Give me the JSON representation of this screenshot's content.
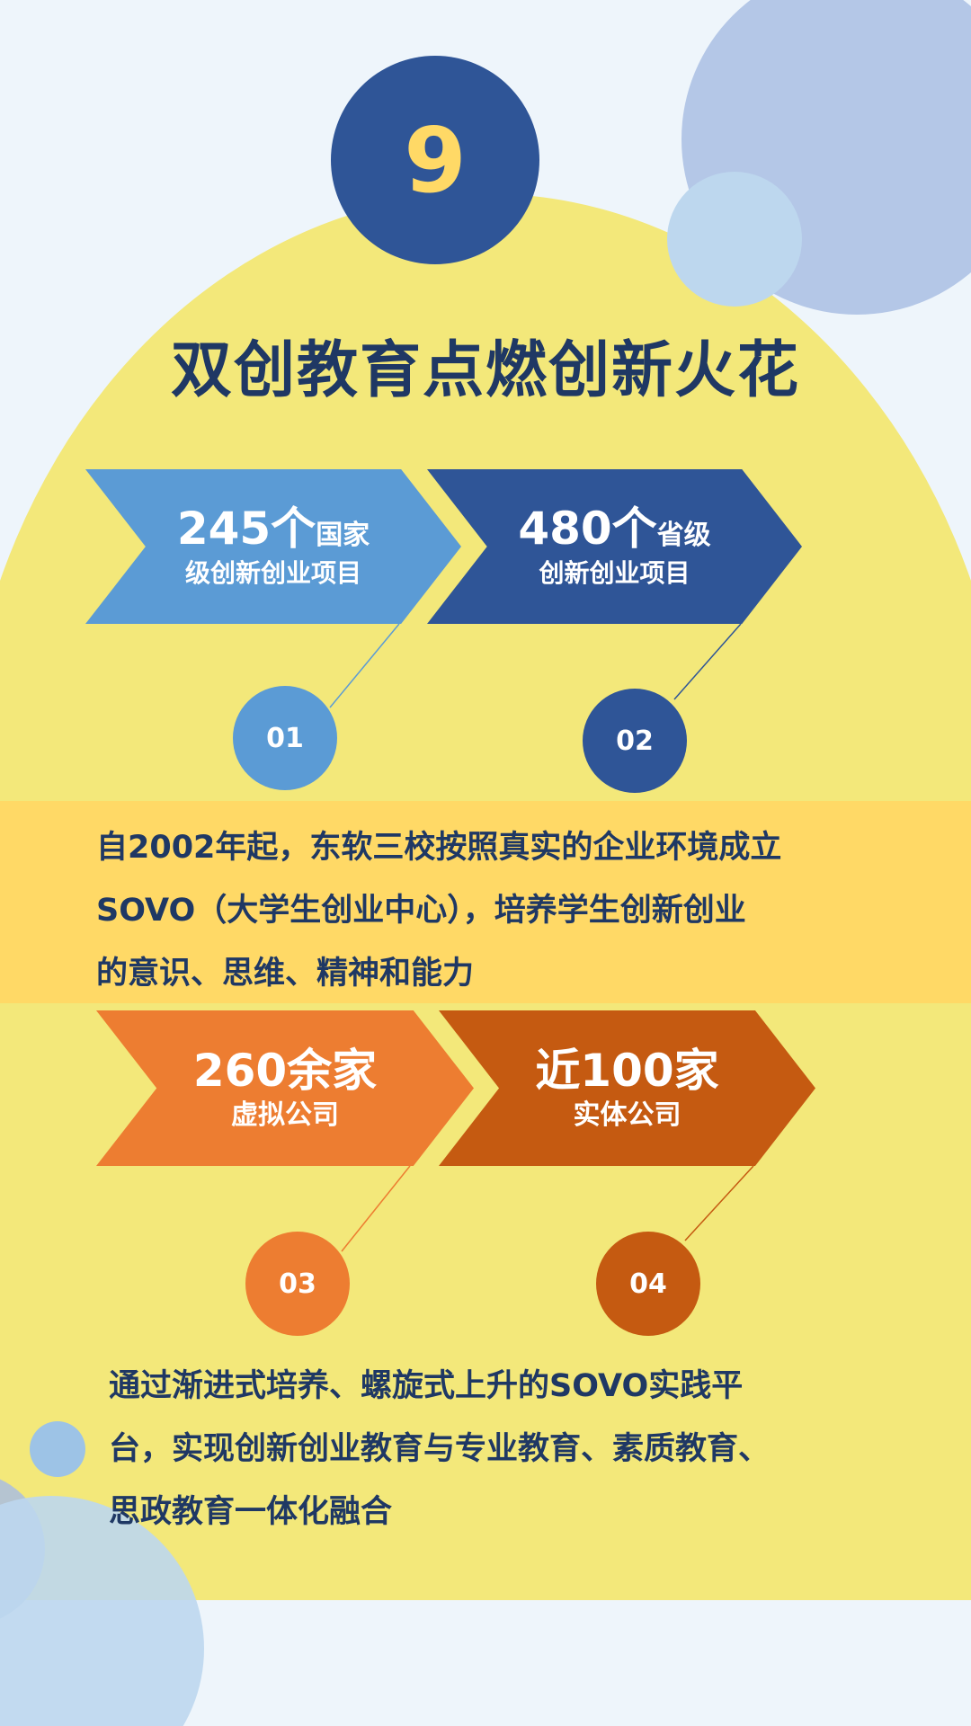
{
  "badge_number": "9",
  "title": "双创教育点燃创新火花",
  "colors": {
    "navy": "#2f5597",
    "light_blue": "#5b9bd5",
    "orange": "#ed7d31",
    "dark_orange": "#c55a11",
    "yellow": "#f3e87a",
    "band": "#ffd966",
    "text": "#1f3864"
  },
  "stats": [
    {
      "number": "245个",
      "unit": "国家",
      "line2": "级创新创业项目",
      "index": "01"
    },
    {
      "number": "480个",
      "unit": "省级",
      "line2": "创新创业项目",
      "index": "02"
    },
    {
      "number": "260余家",
      "unit": "",
      "line2": "虚拟公司",
      "index": "03"
    },
    {
      "number": "近100家",
      "unit": "",
      "line2": "实体公司",
      "index": "04"
    }
  ],
  "band_text": [
    "自2002年起，东软三校按照真实的企业环境成立",
    "SOVO（大学生创业中心），培养学生创新创业",
    "的意识、思维、精神和能力"
  ],
  "bottom_text": [
    "通过渐进式培养、螺旋式上升的SOVO实践平",
    "台，实现创新创业教育与专业教育、素质教育、",
    "思政教育一体化融合"
  ]
}
